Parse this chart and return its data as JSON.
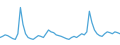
{
  "values": [
    3.5,
    3.8,
    4.2,
    4.0,
    3.6,
    3.2,
    3.0,
    4.5,
    11.5,
    7.0,
    4.5,
    3.5,
    3.2,
    3.0,
    3.5,
    4.0,
    3.8,
    3.5,
    4.5,
    5.5,
    5.0,
    4.8,
    4.2,
    4.0,
    3.8,
    3.5,
    3.2,
    3.0,
    3.5,
    3.8,
    3.5,
    4.0,
    4.5,
    4.2,
    5.0,
    10.5,
    7.5,
    5.5,
    4.5,
    4.0,
    3.8,
    4.5,
    5.0,
    4.8,
    4.5,
    5.0,
    4.8,
    4.5
  ],
  "line_color": "#4da6d8",
  "background_color": "#ffffff",
  "ylim_min": 1.5,
  "ylim_max": 13.5
}
